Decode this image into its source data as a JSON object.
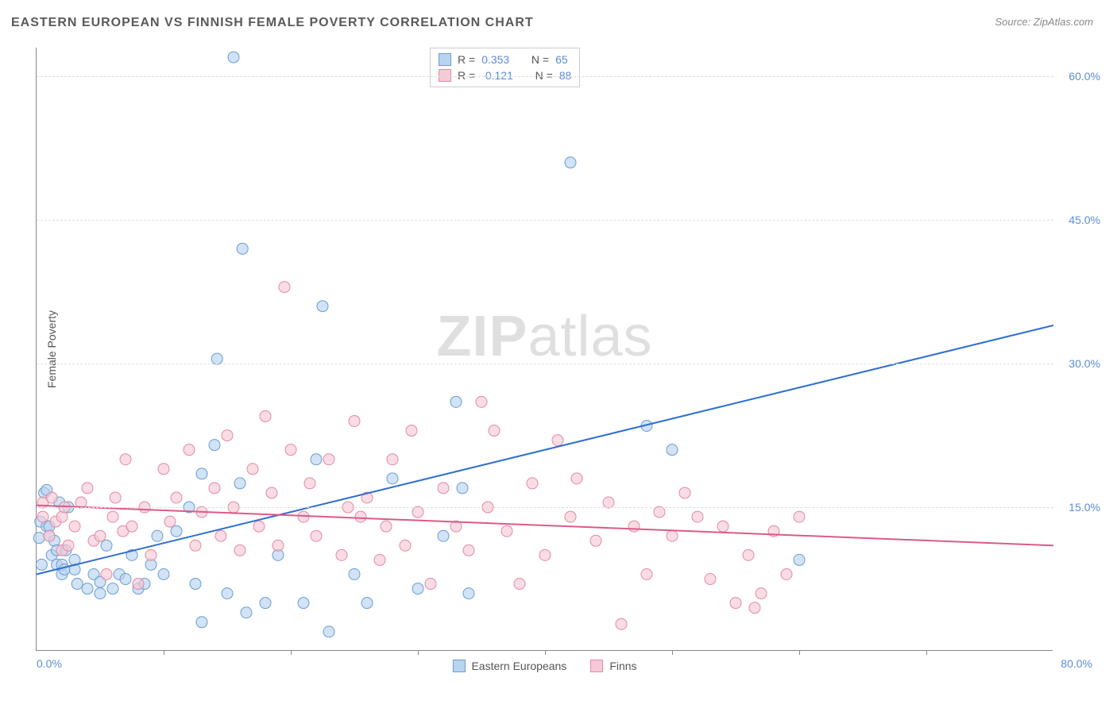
{
  "title": "EASTERN EUROPEAN VS FINNISH FEMALE POVERTY CORRELATION CHART",
  "source": "Source: ZipAtlas.com",
  "watermark_a": "ZIP",
  "watermark_b": "atlas",
  "y_axis_label": "Female Poverty",
  "chart": {
    "type": "scatter",
    "xlim": [
      0,
      80
    ],
    "ylim": [
      0,
      63
    ],
    "x_label_min": "0.0%",
    "x_label_max": "80.0%",
    "x_ticks": [
      10,
      20,
      30,
      40,
      50,
      60,
      70
    ],
    "y_ticks": [
      {
        "v": 15,
        "label": "15.0%"
      },
      {
        "v": 30,
        "label": "30.0%"
      },
      {
        "v": 45,
        "label": "45.0%"
      },
      {
        "v": 60,
        "label": "60.0%"
      }
    ],
    "grid_color": "#dddddd",
    "axis_color": "#888888",
    "background": "#ffffff",
    "marker_radius": 7,
    "marker_stroke_width": 1,
    "trend_line_width": 2,
    "series": [
      {
        "name": "Eastern Europeans",
        "fill": "#b9d4f0",
        "stroke": "#6a9cd4",
        "fill_opacity": 0.65,
        "R": "0.353",
        "N": "65",
        "trend": {
          "x1": 0,
          "y1": 8.0,
          "x2": 80,
          "y2": 34.0,
          "color": "#2f6fd0"
        },
        "points": [
          [
            0.2,
            11.8
          ],
          [
            0.3,
            13.5
          ],
          [
            0.4,
            9.0
          ],
          [
            0.6,
            16.5
          ],
          [
            0.8,
            13.0
          ],
          [
            0.8,
            16.8
          ],
          [
            1.0,
            13.0
          ],
          [
            1.0,
            12.0
          ],
          [
            1.2,
            10.0
          ],
          [
            1.4,
            11.5
          ],
          [
            1.6,
            9.0
          ],
          [
            1.6,
            10.5
          ],
          [
            1.8,
            15.5
          ],
          [
            2.0,
            8.0
          ],
          [
            2.0,
            9.0
          ],
          [
            2.2,
            8.5
          ],
          [
            2.3,
            10.5
          ],
          [
            2.5,
            15.0
          ],
          [
            3.0,
            8.5
          ],
          [
            3.0,
            9.5
          ],
          [
            3.2,
            7.0
          ],
          [
            4.0,
            6.5
          ],
          [
            4.5,
            8.0
          ],
          [
            5.0,
            6.0
          ],
          [
            5.0,
            7.2
          ],
          [
            5.5,
            11.0
          ],
          [
            6.0,
            6.5
          ],
          [
            6.5,
            8.0
          ],
          [
            7.0,
            7.5
          ],
          [
            7.5,
            10.0
          ],
          [
            8.0,
            6.5
          ],
          [
            8.5,
            7.0
          ],
          [
            9.0,
            9.0
          ],
          [
            9.5,
            12.0
          ],
          [
            10.0,
            8.0
          ],
          [
            11.0,
            12.5
          ],
          [
            12.0,
            15.0
          ],
          [
            12.5,
            7.0
          ],
          [
            13.0,
            18.5
          ],
          [
            13.0,
            3.0
          ],
          [
            14.0,
            21.5
          ],
          [
            14.2,
            30.5
          ],
          [
            15.0,
            6.0
          ],
          [
            15.5,
            62.0
          ],
          [
            16.0,
            17.5
          ],
          [
            16.2,
            42.0
          ],
          [
            16.5,
            4.0
          ],
          [
            18.0,
            5.0
          ],
          [
            19.0,
            10.0
          ],
          [
            21.0,
            5.0
          ],
          [
            22.0,
            20.0
          ],
          [
            22.5,
            36.0
          ],
          [
            23.0,
            2.0
          ],
          [
            25.0,
            8.0
          ],
          [
            26.0,
            5.0
          ],
          [
            28.0,
            18.0
          ],
          [
            30.0,
            6.5
          ],
          [
            32.0,
            12.0
          ],
          [
            33.0,
            26.0
          ],
          [
            33.5,
            17.0
          ],
          [
            34.0,
            6.0
          ],
          [
            42.0,
            51.0
          ],
          [
            48.0,
            23.5
          ],
          [
            50.0,
            21.0
          ],
          [
            60.0,
            9.5
          ]
        ]
      },
      {
        "name": "Finns",
        "fill": "#f6c9d6",
        "stroke": "#e28aa4",
        "fill_opacity": 0.65,
        "R": "-0.121",
        "N": "88",
        "trend": {
          "x1": 0,
          "y1": 15.2,
          "x2": 80,
          "y2": 11.0,
          "color": "#d95b89"
        },
        "points": [
          [
            0.5,
            14.0
          ],
          [
            0.5,
            15.5
          ],
          [
            1.0,
            12.0
          ],
          [
            1.2,
            16.0
          ],
          [
            1.5,
            13.5
          ],
          [
            2.0,
            14.0
          ],
          [
            2.0,
            10.5
          ],
          [
            2.2,
            15.0
          ],
          [
            2.5,
            11.0
          ],
          [
            3.0,
            13.0
          ],
          [
            3.5,
            15.5
          ],
          [
            4.0,
            17.0
          ],
          [
            4.5,
            11.5
          ],
          [
            5.0,
            12.0
          ],
          [
            5.5,
            8.0
          ],
          [
            6.0,
            14.0
          ],
          [
            6.2,
            16.0
          ],
          [
            6.8,
            12.5
          ],
          [
            7.0,
            20.0
          ],
          [
            7.5,
            13.0
          ],
          [
            8.0,
            7.0
          ],
          [
            8.5,
            15.0
          ],
          [
            9.0,
            10.0
          ],
          [
            10.0,
            19.0
          ],
          [
            10.5,
            13.5
          ],
          [
            11.0,
            16.0
          ],
          [
            12.0,
            21.0
          ],
          [
            12.5,
            11.0
          ],
          [
            13.0,
            14.5
          ],
          [
            14.0,
            17.0
          ],
          [
            14.5,
            12.0
          ],
          [
            15.0,
            22.5
          ],
          [
            15.5,
            15.0
          ],
          [
            16.0,
            10.5
          ],
          [
            17.0,
            19.0
          ],
          [
            17.5,
            13.0
          ],
          [
            18.0,
            24.5
          ],
          [
            18.5,
            16.5
          ],
          [
            19.0,
            11.0
          ],
          [
            19.5,
            38.0
          ],
          [
            20.0,
            21.0
          ],
          [
            21.0,
            14.0
          ],
          [
            21.5,
            17.5
          ],
          [
            22.0,
            12.0
          ],
          [
            23.0,
            20.0
          ],
          [
            24.0,
            10.0
          ],
          [
            24.5,
            15.0
          ],
          [
            25.0,
            24.0
          ],
          [
            25.5,
            14.0
          ],
          [
            26.0,
            16.0
          ],
          [
            27.0,
            9.5
          ],
          [
            27.5,
            13.0
          ],
          [
            28.0,
            20.0
          ],
          [
            29.0,
            11.0
          ],
          [
            29.5,
            23.0
          ],
          [
            30.0,
            14.5
          ],
          [
            31.0,
            7.0
          ],
          [
            32.0,
            17.0
          ],
          [
            33.0,
            13.0
          ],
          [
            34.0,
            10.5
          ],
          [
            35.0,
            26.0
          ],
          [
            35.5,
            15.0
          ],
          [
            36.0,
            23.0
          ],
          [
            37.0,
            12.5
          ],
          [
            38.0,
            7.0
          ],
          [
            39.0,
            17.5
          ],
          [
            40.0,
            10.0
          ],
          [
            41.0,
            22.0
          ],
          [
            42.0,
            14.0
          ],
          [
            42.5,
            18.0
          ],
          [
            44.0,
            11.5
          ],
          [
            45.0,
            15.5
          ],
          [
            46.0,
            2.8
          ],
          [
            47.0,
            13.0
          ],
          [
            48.0,
            8.0
          ],
          [
            49.0,
            14.5
          ],
          [
            50.0,
            12.0
          ],
          [
            51.0,
            16.5
          ],
          [
            52.0,
            14.0
          ],
          [
            53.0,
            7.5
          ],
          [
            54.0,
            13.0
          ],
          [
            55.0,
            5.0
          ],
          [
            56.0,
            10.0
          ],
          [
            56.5,
            4.5
          ],
          [
            57.0,
            6.0
          ],
          [
            58.0,
            12.5
          ],
          [
            59.0,
            8.0
          ],
          [
            60.0,
            14.0
          ]
        ]
      }
    ]
  },
  "legend_r_label": "R =",
  "legend_n_label": "N ="
}
